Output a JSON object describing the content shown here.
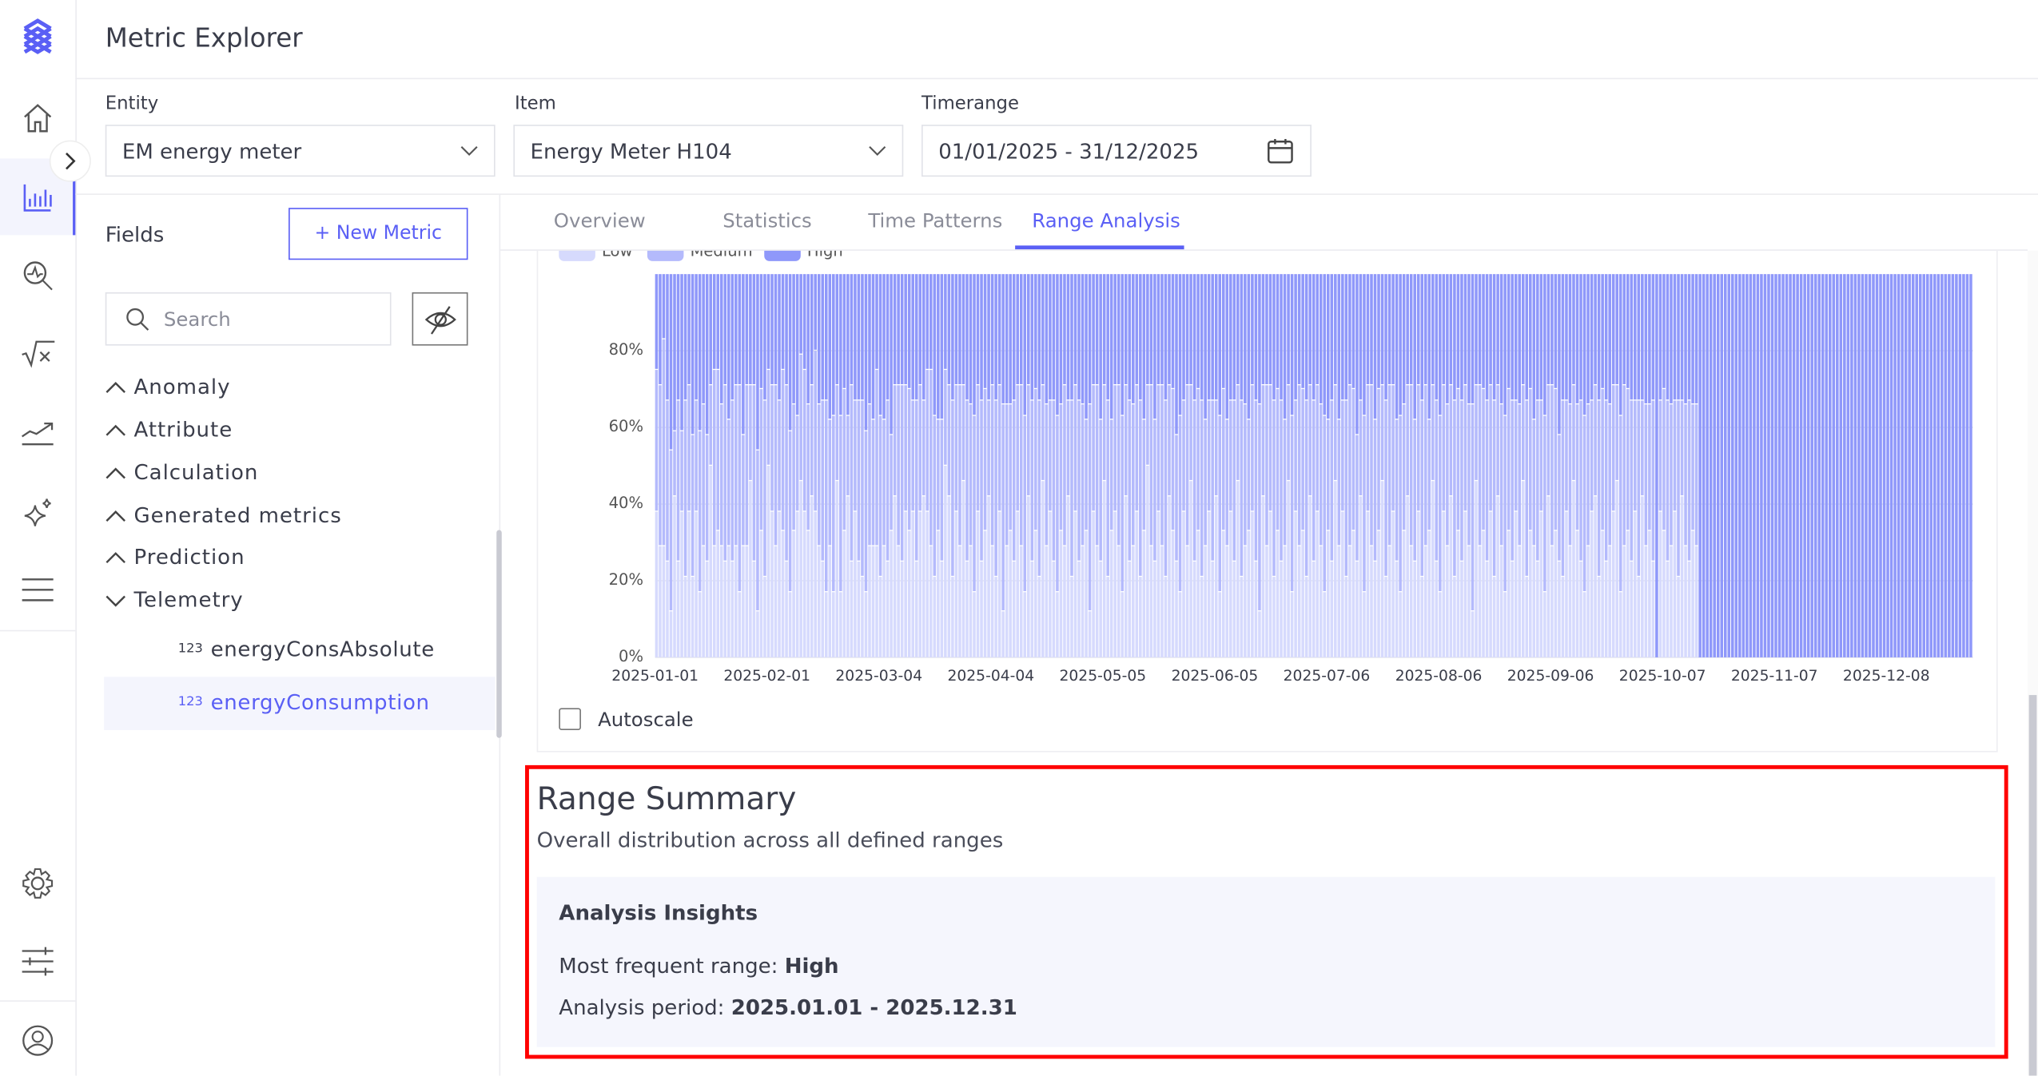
{
  "app": {
    "title": "Metric Explorer",
    "accent": "#5a5ff5"
  },
  "nav": {
    "items": [
      "home-icon",
      "chart-icon",
      "search-chart-icon",
      "formula-icon",
      "trend-icon",
      "sparkle-icon",
      "menu-icon",
      "gear-icon",
      "sliders-icon",
      "user-icon"
    ],
    "active": "chart-icon"
  },
  "filters": {
    "entity": {
      "label": "Entity",
      "value": "EM energy meter"
    },
    "item": {
      "label": "Item",
      "value": "Energy Meter H104"
    },
    "timerange": {
      "label": "Timerange",
      "value": "01/01/2025 - 31/12/2025"
    }
  },
  "fields": {
    "title": "Fields",
    "new_metric": "+ New Metric",
    "search_placeholder": "Search",
    "groups": [
      {
        "label": "Anomaly",
        "expanded": false
      },
      {
        "label": "Attribute",
        "expanded": false
      },
      {
        "label": "Calculation",
        "expanded": false
      },
      {
        "label": "Generated metrics",
        "expanded": false
      },
      {
        "label": "Prediction",
        "expanded": false
      },
      {
        "label": "Telemetry",
        "expanded": true
      }
    ],
    "children": [
      {
        "type": "123",
        "label": "energyConsAbsolute",
        "selected": false
      },
      {
        "type": "123",
        "label": "energyConsumption",
        "selected": true
      }
    ]
  },
  "tabs": [
    {
      "label": "Overview"
    },
    {
      "label": "Statistics"
    },
    {
      "label": "Time Patterns"
    },
    {
      "label": "Range Analysis",
      "active": true
    }
  ],
  "chart_data": {
    "type": "bar",
    "stacked": true,
    "x_start": "2025-01-01",
    "x_end": "2025-12-31",
    "xticks": [
      "2025-01-01",
      "2025-02-01",
      "2025-03-04",
      "2025-04-04",
      "2025-05-05",
      "2025-06-05",
      "2025-07-06",
      "2025-08-06",
      "2025-09-06",
      "2025-10-07",
      "2025-11-07",
      "2025-12-08"
    ],
    "yticks": [
      "0%",
      "20%",
      "40%",
      "60%",
      "80%"
    ],
    "ylim": [
      0,
      100
    ],
    "grid": true,
    "legend": "top-left",
    "series": [
      {
        "name": "Low",
        "color": "#d6dafd",
        "values": [
          38,
          29,
          29,
          25,
          12,
          42,
          25,
          38,
          21,
          38,
          21,
          38,
          17,
          29,
          25,
          50,
          29,
          33,
          29,
          25,
          29,
          25,
          29,
          17,
          29,
          29,
          46,
          25,
          12,
          33,
          21,
          50,
          38,
          29,
          38,
          33,
          25,
          17,
          33,
          38,
          46,
          38,
          33,
          42,
          38,
          29,
          25,
          17,
          29,
          17,
          46,
          17,
          33,
          42,
          25,
          38,
          25,
          21,
          17,
          29,
          29,
          29,
          21,
          29,
          25,
          33,
          42,
          29,
          25,
          38,
          33,
          38,
          25,
          38,
          42,
          38,
          29,
          21,
          33,
          25,
          50,
          42,
          21,
          38,
          29,
          46,
          25,
          29,
          17,
          38,
          25,
          33,
          42,
          29,
          21,
          38,
          12,
          29,
          33,
          25,
          38,
          29,
          17,
          42,
          25,
          33,
          21,
          46,
          29,
          38,
          25,
          17,
          33,
          29,
          42,
          21,
          38,
          25,
          29,
          33,
          12,
          38,
          29,
          25,
          46,
          21,
          33,
          38,
          29,
          17,
          42,
          25,
          29,
          38,
          21,
          33,
          50,
          29,
          25,
          38,
          29,
          21,
          42,
          33,
          25,
          17,
          38,
          29,
          46,
          25,
          33,
          21,
          29,
          38,
          25,
          42,
          17,
          33,
          29,
          38,
          25,
          46,
          21,
          29,
          33,
          38,
          25,
          12,
          42,
          29,
          38,
          21,
          33,
          25,
          29,
          46,
          17,
          38,
          29,
          33,
          21,
          42,
          25,
          38,
          29,
          17,
          33,
          25,
          46,
          29,
          38,
          21,
          29,
          33,
          25,
          42,
          17,
          38,
          29,
          25,
          33,
          46,
          21,
          29,
          38,
          25,
          17,
          33,
          42,
          29,
          25,
          38,
          21,
          29,
          33,
          46,
          25,
          17,
          38,
          29,
          42,
          21,
          33,
          25,
          38,
          29,
          12,
          46,
          29,
          33,
          25,
          38,
          21,
          42,
          29,
          17,
          33,
          25,
          38,
          29,
          46,
          21,
          33,
          29,
          25,
          38,
          17,
          42,
          29,
          33,
          25,
          21,
          38,
          29,
          46,
          33,
          25,
          17,
          29,
          38,
          42,
          21,
          33,
          25,
          29,
          38,
          46,
          17,
          29,
          33,
          25,
          38,
          21,
          42,
          29,
          33,
          25,
          0,
          38,
          33,
          25,
          29,
          38,
          21,
          42,
          29,
          25,
          33,
          29,
          0,
          0,
          0,
          0,
          0,
          0,
          0,
          0,
          0,
          0,
          0,
          0,
          0,
          0,
          0,
          0,
          0,
          0,
          0,
          0,
          0,
          0,
          0,
          0,
          0,
          0,
          0,
          0,
          0,
          0,
          0,
          0,
          0,
          0,
          0,
          0,
          0,
          0,
          0,
          0,
          0,
          0,
          0,
          0,
          0,
          0,
          0,
          0,
          0,
          0,
          0,
          0,
          0,
          0,
          0,
          0,
          0,
          0,
          0,
          0,
          0,
          0,
          0,
          0,
          0,
          0
        ]
      },
      {
        "name": "Medium",
        "color": "#b4bafc",
        "values": [
          37,
          42,
          54,
          42,
          42,
          17,
          42,
          21,
          46,
          33,
          37,
          29,
          42,
          37,
          33,
          21,
          46,
          42,
          37,
          46,
          33,
          42,
          42,
          54,
          29,
          42,
          25,
          46,
          42,
          37,
          46,
          25,
          33,
          42,
          29,
          42,
          46,
          42,
          33,
          25,
          33,
          37,
          33,
          29,
          42,
          37,
          42,
          50,
          33,
          46,
          25,
          46,
          37,
          21,
          46,
          29,
          42,
          46,
          42,
          37,
          33,
          46,
          42,
          33,
          42,
          25,
          29,
          42,
          46,
          33,
          37,
          29,
          42,
          33,
          25,
          37,
          46,
          42,
          29,
          37,
          25,
          29,
          46,
          33,
          42,
          25,
          42,
          37,
          46,
          33,
          42,
          37,
          25,
          42,
          46,
          33,
          54,
          37,
          33,
          42,
          33,
          42,
          46,
          29,
          42,
          37,
          46,
          25,
          37,
          29,
          42,
          46,
          33,
          42,
          25,
          46,
          33,
          42,
          37,
          29,
          54,
          33,
          42,
          37,
          25,
          46,
          29,
          33,
          42,
          46,
          29,
          42,
          37,
          33,
          46,
          29,
          21,
          42,
          37,
          33,
          42,
          46,
          29,
          37,
          33,
          46,
          29,
          42,
          25,
          42,
          37,
          46,
          33,
          29,
          42,
          25,
          46,
          37,
          33,
          29,
          42,
          25,
          46,
          37,
          29,
          33,
          42,
          54,
          29,
          42,
          33,
          46,
          37,
          42,
          33,
          25,
          46,
          29,
          42,
          37,
          46,
          29,
          42,
          33,
          37,
          46,
          29,
          42,
          25,
          33,
          29,
          46,
          42,
          37,
          33,
          25,
          46,
          33,
          42,
          37,
          37,
          25,
          46,
          42,
          33,
          37,
          46,
          33,
          29,
          42,
          37,
          33,
          46,
          42,
          29,
          25,
          42,
          46,
          33,
          37,
          29,
          46,
          37,
          42,
          33,
          37,
          54,
          25,
          42,
          37,
          42,
          33,
          46,
          29,
          37,
          46,
          37,
          42,
          29,
          37,
          25,
          46,
          37,
          33,
          42,
          29,
          46,
          29,
          42,
          37,
          33,
          46,
          29,
          37,
          25,
          33,
          42,
          46,
          37,
          29,
          29,
          46,
          37,
          42,
          37,
          33,
          25,
          46,
          42,
          37,
          42,
          29,
          46,
          25,
          37,
          33,
          42,
          0,
          29,
          37,
          42,
          37,
          29,
          46,
          25,
          37,
          42,
          33,
          37,
          0,
          0,
          0,
          0,
          0,
          0,
          0,
          0,
          0,
          0,
          0,
          0,
          0,
          0,
          0,
          0,
          0,
          0,
          0,
          0,
          0,
          0,
          0,
          0,
          0,
          0,
          0,
          0,
          0,
          0,
          0,
          0,
          0,
          0,
          0,
          0,
          0,
          0,
          0,
          0,
          0,
          0,
          0,
          0,
          0,
          0,
          0,
          0,
          0,
          0,
          0,
          0,
          0,
          0,
          0,
          0,
          0,
          0,
          0,
          0,
          0,
          0,
          0,
          0,
          0,
          0
        ]
      },
      {
        "name": "High",
        "color": "#8f98fa",
        "values": "remainder to 100%"
      }
    ]
  },
  "autoscale": {
    "label": "Autoscale",
    "checked": false
  },
  "summary": {
    "title": "Range Summary",
    "subtitle": "Overall distribution across all defined ranges",
    "insights_title": "Analysis Insights",
    "most_frequent_label": "Most frequent range: ",
    "most_frequent_value": "High",
    "period_label": "Analysis period: ",
    "period_value": "2025.01.01 - 2025.12.31",
    "highlight_color": "#ff0000"
  }
}
